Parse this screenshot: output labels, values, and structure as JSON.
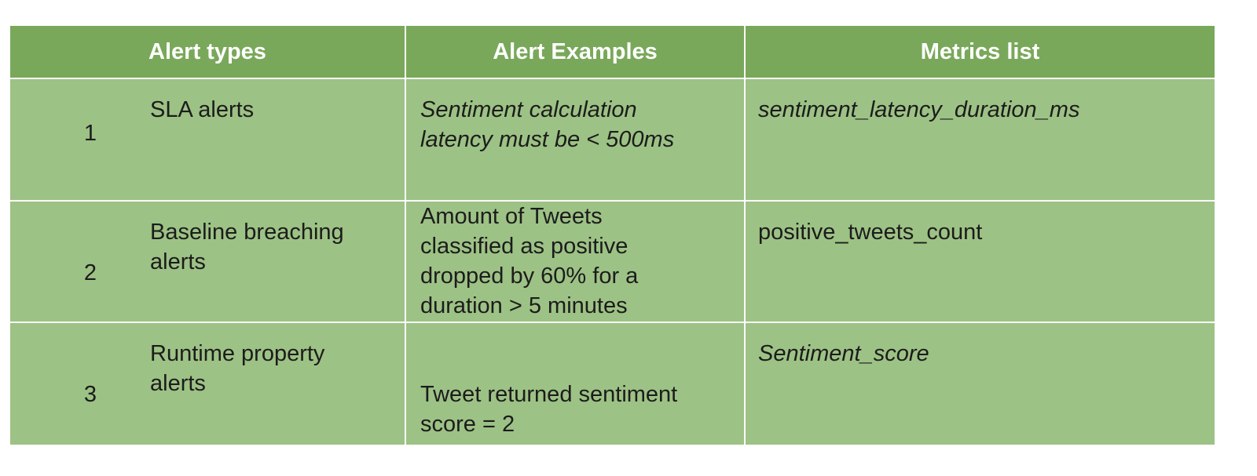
{
  "table": {
    "headers": [
      "Alert types",
      "Alert Examples",
      "Metrics list"
    ],
    "rows": [
      {
        "number": "1",
        "alert_type": "SLA alerts",
        "example": "Sentiment calculation\nlatency must be < 500ms",
        "metric": "sentiment_latency_duration_ms"
      },
      {
        "number": "2",
        "alert_type": "Baseline breaching\nalerts",
        "example": "Amount of Tweets\nclassified as positive\ndropped by 60% for a\nduration > 5 minutes",
        "metric": "positive_tweets_count"
      },
      {
        "number": "3",
        "alert_type": "Runtime property\nalerts",
        "example": "Tweet returned sentiment\nscore = 2",
        "metric": "Sentiment_score"
      }
    ]
  },
  "colors": {
    "header_bg": "#79a85a",
    "row_bg": "#9dc285",
    "header_text": "#ffffff",
    "grid_line": "#ffffff"
  }
}
